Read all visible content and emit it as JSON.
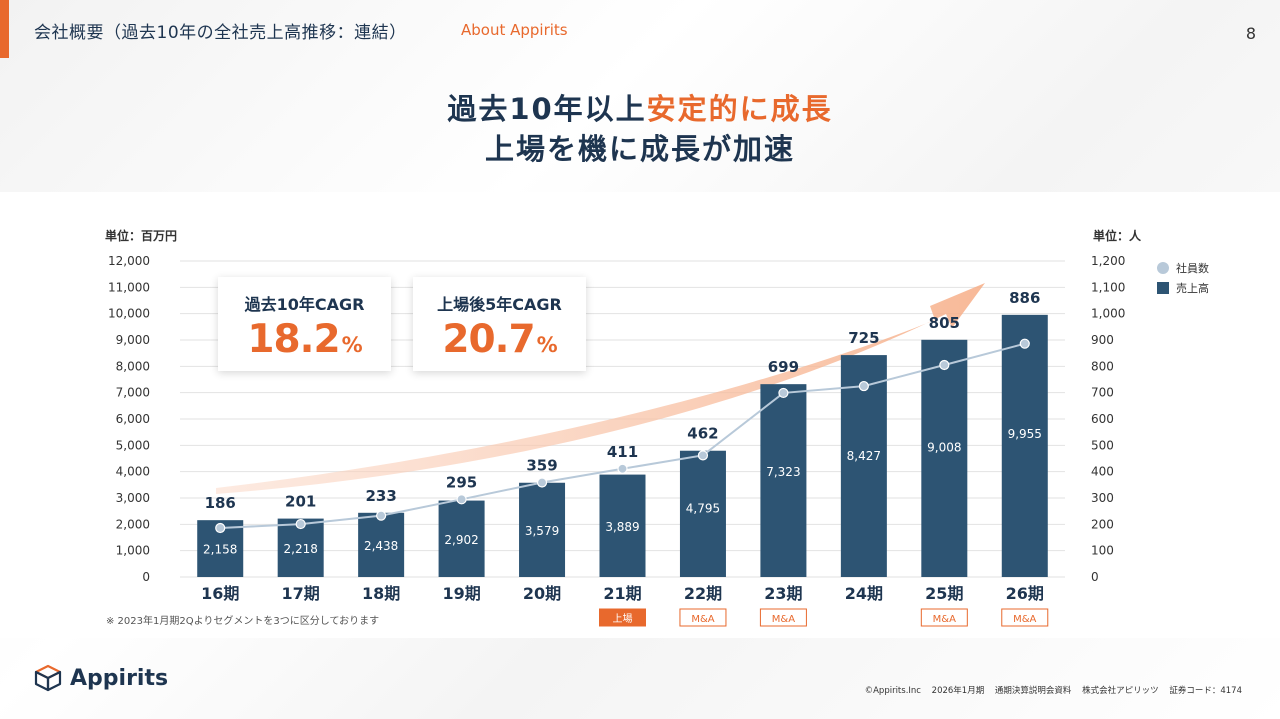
{
  "header": {
    "title": "会社概要（過去10年の全社売上高推移：連結）",
    "subtitle": "About Appirits",
    "page_number": "8"
  },
  "headline": {
    "line1_a": "過去10年以上",
    "line1_b": "安定的に成長",
    "line2": "上場を機に成長が加速"
  },
  "cagr": [
    {
      "label": "過去10年CAGR",
      "value": "18.2",
      "unit": "%"
    },
    {
      "label": "上場後5年CAGR",
      "value": "20.7",
      "unit": "%"
    }
  ],
  "note": "※ 2023年1月期2Qよりセグメントを3つに区分しております",
  "logo": {
    "name": "Appirits"
  },
  "footer": {
    "copyright": "©Appirits.Inc",
    "period": "2026年1月期",
    "doc": "通期決算説明会資料",
    "company": "株式会社アピリッツ",
    "code": "証券コード：4174"
  },
  "colors": {
    "bar": "#2d5473",
    "line": "#b8c9d9",
    "accent": "#e8692d",
    "navy": "#1e3550"
  },
  "chart_data": {
    "type": "bar",
    "categories": [
      "16期",
      "17期",
      "18期",
      "19期",
      "20期",
      "21期",
      "22期",
      "23期",
      "24期",
      "25期",
      "26期"
    ],
    "series": [
      {
        "name": "売上高",
        "type": "bar",
        "axis": "left",
        "values": [
          2158,
          2218,
          2438,
          2902,
          3579,
          3889,
          4795,
          7323,
          8427,
          9008,
          9955
        ]
      },
      {
        "name": "社員数",
        "type": "line",
        "axis": "right",
        "values": [
          186,
          201,
          233,
          295,
          359,
          411,
          462,
          699,
          725,
          805,
          886
        ]
      }
    ],
    "bar_labels": [
      "2,158",
      "2,218",
      "2,438",
      "2,902",
      "3,579",
      "3,889",
      "4,795",
      "7,323",
      "8,427",
      "9,008",
      "9,955"
    ],
    "line_labels": [
      "186",
      "201",
      "233",
      "295",
      "359",
      "411",
      "462",
      "699",
      "725",
      "805",
      "886"
    ],
    "y_left": {
      "label": "単位：百万円",
      "min": 0,
      "max": 12000,
      "ticks": [
        "0",
        "1,000",
        "2,000",
        "3,000",
        "4,000",
        "5,000",
        "6,000",
        "7,000",
        "8,000",
        "9,000",
        "10,000",
        "11,000",
        "12,000"
      ]
    },
    "y_right": {
      "label": "単位：人",
      "min": 0,
      "max": 1200,
      "ticks": [
        "0",
        "100",
        "200",
        "300",
        "400",
        "500",
        "600",
        "700",
        "800",
        "900",
        "1,000",
        "1,100",
        "1,200"
      ]
    },
    "badges": [
      "",
      "",
      "",
      "",
      "",
      "上場",
      "M&A",
      "M&A",
      "",
      "M&A",
      "M&A"
    ],
    "legend": [
      "社員数",
      "売上高"
    ],
    "grid": true
  }
}
